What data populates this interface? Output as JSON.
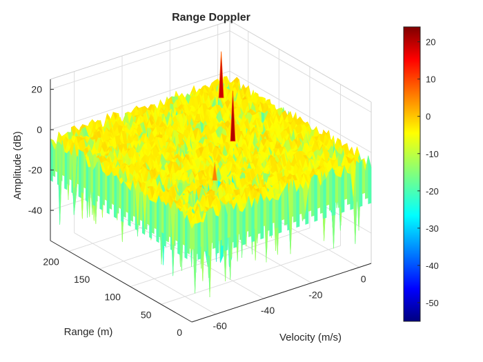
{
  "chart_data": {
    "type": "surface",
    "title": "Range Doppler",
    "xlabel": "Velocity (m/s)",
    "ylabel": "Range (m)",
    "zlabel": "Amplitude (dB)",
    "xlim": [
      -70,
      5
    ],
    "ylim": [
      0,
      230
    ],
    "zlim": [
      -55,
      25
    ],
    "xticks": [
      "-60",
      "-40",
      "-20",
      "0"
    ],
    "yticks": [
      "0",
      "50",
      "100",
      "150",
      "200"
    ],
    "zticks": [
      "20",
      "0",
      "-20",
      "-40"
    ],
    "colorbar": {
      "min": -55,
      "max": 24,
      "ticks": [
        "20",
        "10",
        "0",
        "-10",
        "-20",
        "-30",
        "-40",
        "-50"
      ],
      "colormap": "jet"
    },
    "noise_floor_db": -5,
    "peaks": [
      {
        "velocity": -45,
        "range": 60,
        "amplitude": 4
      },
      {
        "velocity": -22,
        "range": 120,
        "amplitude": 20
      },
      {
        "velocity": -5,
        "range": 205,
        "amplitude": 18
      }
    ],
    "grid": true
  }
}
